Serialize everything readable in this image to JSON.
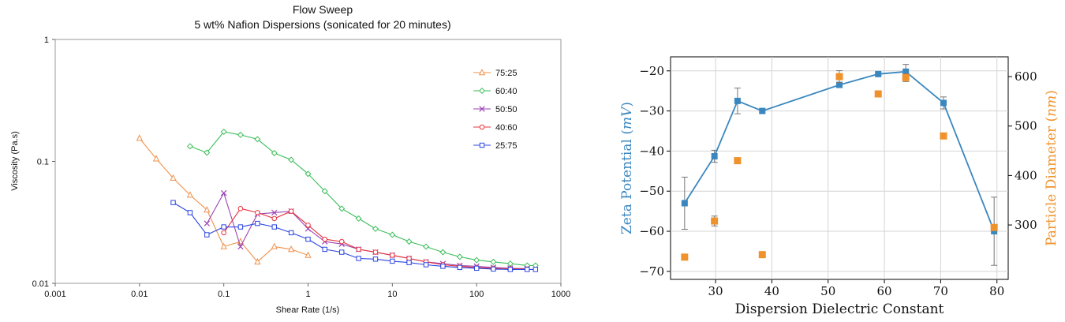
{
  "chart_data": [
    {
      "type": "line",
      "title": "Flow Sweep",
      "subtitle": "5 wt% Nafion Dispersions (sonicated for 20 minutes)",
      "xlabel": "Shear Rate (1/s)",
      "ylabel": "Viscosity (Pa.s)",
      "xscale": "log",
      "yscale": "log",
      "xlim": [
        0.001,
        1000
      ],
      "ylim": [
        0.01,
        1
      ],
      "x_ticks": [
        "0.001",
        "0.01",
        "0.1",
        "1",
        "10",
        "100",
        "1000"
      ],
      "y_ticks": [
        "0.01",
        "0.1",
        "1"
      ],
      "grid": false,
      "legend_position": "top-right",
      "series": [
        {
          "name": "75:25",
          "color": "#f0904a",
          "marker": "triangle",
          "x": [
            0.01,
            0.0158,
            0.0251,
            0.0398,
            0.0631,
            0.1,
            0.158,
            0.251,
            0.398,
            0.631,
            1.0
          ],
          "y": [
            0.155,
            0.105,
            0.073,
            0.053,
            0.04,
            0.02,
            0.022,
            0.015,
            0.02,
            0.019,
            0.017
          ]
        },
        {
          "name": "60:40",
          "color": "#3cbe5a",
          "marker": "diamond",
          "x": [
            0.0398,
            0.0631,
            0.1,
            0.158,
            0.251,
            0.398,
            0.631,
            1.0,
            1.58,
            2.51,
            3.98,
            6.31,
            10,
            15.8,
            25.1,
            39.8,
            63.1,
            100,
            158,
            251,
            398,
            500
          ],
          "y": [
            0.133,
            0.118,
            0.175,
            0.165,
            0.152,
            0.117,
            0.103,
            0.079,
            0.057,
            0.041,
            0.034,
            0.028,
            0.025,
            0.022,
            0.02,
            0.018,
            0.0165,
            0.0155,
            0.015,
            0.0145,
            0.014,
            0.014
          ]
        },
        {
          "name": "50:50",
          "color": "#9b45b4",
          "marker": "x",
          "x": [
            0.0631,
            0.1,
            0.158,
            0.251,
            0.398,
            0.631,
            1.0,
            1.58,
            2.51,
            3.98,
            6.31,
            10,
            15.8,
            25.1,
            39.8,
            63.1,
            100,
            158,
            251,
            398
          ],
          "y": [
            0.031,
            0.055,
            0.02,
            0.037,
            0.038,
            0.039,
            0.028,
            0.022,
            0.021,
            0.019,
            0.018,
            0.017,
            0.016,
            0.015,
            0.0145,
            0.014,
            0.0138,
            0.0135,
            0.0133,
            0.0132
          ]
        },
        {
          "name": "40:60",
          "color": "#e8333c",
          "marker": "circle",
          "x": [
            0.1,
            0.158,
            0.251,
            0.398,
            0.631,
            1.0,
            1.58,
            2.51,
            3.98,
            6.31,
            10,
            15.8,
            25.1,
            39.8,
            63.1,
            100,
            158,
            251,
            398
          ],
          "y": [
            0.026,
            0.041,
            0.038,
            0.034,
            0.039,
            0.03,
            0.023,
            0.022,
            0.019,
            0.018,
            0.017,
            0.016,
            0.015,
            0.0142,
            0.0138,
            0.0135,
            0.0133,
            0.0132,
            0.0131
          ]
        },
        {
          "name": "25:75",
          "color": "#2a45e0",
          "marker": "square",
          "x": [
            0.0251,
            0.0398,
            0.0631,
            0.1,
            0.158,
            0.251,
            0.398,
            0.631,
            1.0,
            1.58,
            2.51,
            3.98,
            6.31,
            10,
            15.8,
            25.1,
            39.8,
            63.1,
            100,
            158,
            251,
            398,
            500
          ],
          "y": [
            0.046,
            0.038,
            0.025,
            0.029,
            0.029,
            0.031,
            0.029,
            0.026,
            0.023,
            0.019,
            0.018,
            0.016,
            0.0158,
            0.0152,
            0.0148,
            0.0142,
            0.0138,
            0.0135,
            0.0133,
            0.0131,
            0.013,
            0.013,
            0.013
          ]
        }
      ]
    },
    {
      "type": "scatter",
      "xlabel": "Dispersion Dielectric Constant",
      "ylabel_left_prefix": "Zeta Potential (",
      "ylabel_left_unit": "mV",
      "ylabel_left_suffix": ")",
      "ylabel_right_prefix": "Particle Diameter (",
      "ylabel_right_unit": "nm",
      "ylabel_right_suffix": ")",
      "xlim": [
        22,
        82
      ],
      "ylim_left": [
        -72,
        -16.5
      ],
      "ylim_right": [
        190,
        640
      ],
      "x_ticks": [
        30,
        40,
        50,
        60,
        70,
        80
      ],
      "y_ticks_left": [
        -70,
        -60,
        -50,
        -40,
        -30,
        -20
      ],
      "y_ticks_right": [
        300,
        400,
        500,
        600
      ],
      "grid": true,
      "left_color": "#3a87c0",
      "right_color": "#f0922b",
      "zeta_series": {
        "x": [
          24.5,
          29.8,
          33.9,
          38.3,
          52.0,
          58.9,
          63.8,
          70.5,
          79.5
        ],
        "y": [
          -53.0,
          -41.3,
          -27.5,
          -30.0,
          -23.5,
          -20.8,
          -20.2,
          -28.0,
          -60.0
        ],
        "err": [
          6.5,
          1.5,
          3.2,
          0.5,
          0.5,
          0.3,
          1.8,
          1.5,
          8.5
        ]
      },
      "diameter_series": {
        "x": [
          24.5,
          29.8,
          33.9,
          38.3,
          52.0,
          58.9,
          63.8,
          70.5,
          79.5
        ],
        "y": [
          235,
          308,
          430,
          240,
          600,
          565,
          598,
          480,
          295
        ],
        "err": [
          0,
          10,
          0,
          0,
          12,
          6,
          8,
          0,
          0
        ]
      }
    }
  ]
}
